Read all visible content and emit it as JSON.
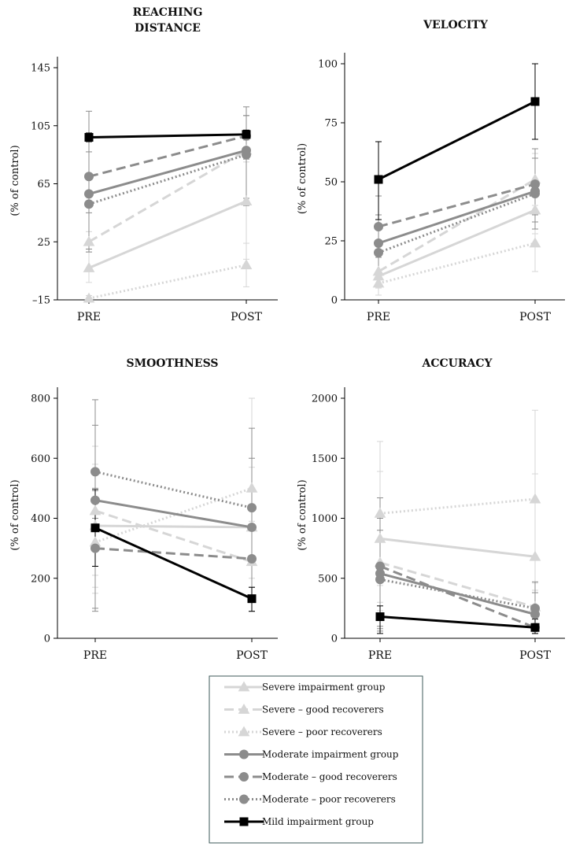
{
  "chart_data": {
    "type": "line",
    "categories": [
      "PRE",
      "POST"
    ],
    "legend": {
      "placement": "bottom-center",
      "entries": [
        {
          "key": "severe",
          "label": "Severe impairment group"
        },
        {
          "key": "severe_good",
          "label": "Severe – good recoverers"
        },
        {
          "key": "severe_poor",
          "label": "Severe – poor recoverers"
        },
        {
          "key": "moderate",
          "label": "Moderate impairment group"
        },
        {
          "key": "moderate_good",
          "label": "Moderate – good recoverers"
        },
        {
          "key": "moderate_poor",
          "label": "Moderate – poor recoverers"
        },
        {
          "key": "mild",
          "label": "Mild impairment group"
        }
      ]
    },
    "styles": {
      "severe": {
        "color": "#d6d6d6",
        "dash": "solid",
        "marker": "triangle"
      },
      "severe_good": {
        "color": "#d6d6d6",
        "dash": "dashed",
        "marker": "triangle"
      },
      "severe_poor": {
        "color": "#d6d6d6",
        "dash": "dotted",
        "marker": "triangle"
      },
      "moderate": {
        "color": "#8c8c8c",
        "dash": "solid",
        "marker": "circle"
      },
      "moderate_good": {
        "color": "#8c8c8c",
        "dash": "dashed",
        "marker": "circle"
      },
      "moderate_poor": {
        "color": "#8c8c8c",
        "dash": "dotted",
        "marker": "circle"
      },
      "mild": {
        "color": "#000000",
        "dash": "solid",
        "marker": "square"
      }
    },
    "panels": [
      {
        "id": "reaching-distance",
        "title": [
          "REACHING",
          "DISTANCE"
        ],
        "ylabel": "(% of control)",
        "ylim": [
          -15,
          145
        ],
        "yticks": [
          "-15",
          "25",
          "65",
          "105",
          "145"
        ],
        "series": [
          {
            "key": "severe",
            "values": [
              7,
              53
            ],
            "err": [
              [
                -3,
                20
              ],
              [
                13,
                95
              ]
            ]
          },
          {
            "key": "severe_good",
            "values": [
              25,
              88
            ],
            "err": [
              [
                18,
                32
              ],
              [
                80,
                95
              ]
            ]
          },
          {
            "key": "severe_poor",
            "values": [
              -14,
              9
            ],
            "err": [
              [
                -16,
                -12
              ],
              [
                -6,
                24
              ]
            ]
          },
          {
            "key": "moderate",
            "values": [
              58,
              88
            ],
            "err": [
              [
                20,
                115
              ],
              [
                55,
                112
              ]
            ]
          },
          {
            "key": "moderate_good",
            "values": [
              70,
              98
            ],
            "err": [
              [
                45,
                94
              ],
              [
                82,
                112
              ]
            ]
          },
          {
            "key": "moderate_poor",
            "values": [
              51,
              85
            ],
            "err": [
              [
                18,
                87
              ],
              [
                50,
                118
              ]
            ]
          },
          {
            "key": "mild",
            "values": [
              97,
              99
            ],
            "err": [
              [
                94,
                100
              ],
              [
                96,
                102
              ]
            ]
          }
        ]
      },
      {
        "id": "velocity",
        "title": [
          "VELOCITY"
        ],
        "ylabel": "(% of control)",
        "ylim": [
          0,
          100
        ],
        "yticks": [
          "0",
          "25",
          "50",
          "75",
          "100"
        ],
        "series": [
          {
            "key": "severe",
            "values": [
              10,
              38
            ],
            "err": [
              [
                2,
                18
              ],
              [
                28,
                48
              ]
            ]
          },
          {
            "key": "severe_good",
            "values": [
              12,
              51
            ],
            "err": [
              [
                5,
                20
              ],
              [
                40,
                62
              ]
            ]
          },
          {
            "key": "severe_poor",
            "values": [
              7,
              24
            ],
            "err": [
              [
                2,
                12
              ],
              [
                12,
                36
              ]
            ]
          },
          {
            "key": "moderate",
            "values": [
              24,
              46
            ],
            "err": [
              [
                12,
                36
              ],
              [
                33,
                60
              ]
            ]
          },
          {
            "key": "moderate_good",
            "values": [
              31,
              49
            ],
            "err": [
              [
                18,
                44
              ],
              [
                36,
                64
              ]
            ]
          },
          {
            "key": "moderate_poor",
            "values": [
              20,
              45
            ],
            "err": [
              [
                9,
                32
              ],
              [
                30,
                60
              ]
            ]
          },
          {
            "key": "mild",
            "values": [
              51,
              84
            ],
            "err": [
              [
                34,
                67
              ],
              [
                68,
                100
              ]
            ]
          }
        ]
      },
      {
        "id": "smoothness",
        "title": [
          "SMOOTHNESS"
        ],
        "ylabel": "(% of control)",
        "ylim": [
          0,
          800
        ],
        "yticks": [
          "0",
          "200",
          "400",
          "600",
          "800"
        ],
        "series": [
          {
            "key": "severe",
            "values": [
              375,
              370
            ],
            "err": [
              [
                170,
                580
              ],
              [
                170,
                570
              ]
            ]
          },
          {
            "key": "severe_good",
            "values": [
              425,
              255
            ],
            "err": [
              [
                210,
                640
              ],
              [
                120,
                390
              ]
            ]
          },
          {
            "key": "severe_poor",
            "values": [
              320,
              500
            ],
            "err": [
              [
                150,
                490
              ],
              [
                200,
                800
              ]
            ]
          },
          {
            "key": "moderate",
            "values": [
              460,
              370
            ],
            "err": [
              [
                90,
                795
              ],
              [
                140,
                600
              ]
            ]
          },
          {
            "key": "moderate_good",
            "values": [
              300,
              265
            ],
            "err": [
              [
                100,
                500
              ],
              [
                90,
                440
              ]
            ]
          },
          {
            "key": "moderate_poor",
            "values": [
              555,
              435
            ],
            "err": [
              [
                400,
                710
              ],
              [
                170,
                700
              ]
            ]
          },
          {
            "key": "mild",
            "values": [
              368,
              132
            ],
            "err": [
              [
                240,
                495
              ],
              [
                90,
                170
              ]
            ]
          }
        ]
      },
      {
        "id": "accuracy",
        "title": [
          "ACCURACY"
        ],
        "ylabel": "(% of control)",
        "ylim": [
          0,
          2000
        ],
        "yticks": [
          "0",
          "500",
          "1000",
          "1500",
          "2000"
        ],
        "series": [
          {
            "key": "severe",
            "values": [
              830,
              680
            ],
            "err": [
              [
                300,
                1390
              ],
              [
                100,
                1370
              ]
            ]
          },
          {
            "key": "severe_good",
            "values": [
              630,
              260
            ],
            "err": [
              [
                230,
                1020
              ],
              [
                80,
                460
              ]
            ]
          },
          {
            "key": "severe_poor",
            "values": [
              1040,
              1160
            ],
            "err": [
              [
                440,
                1640
              ],
              [
                400,
                1900
              ]
            ]
          },
          {
            "key": "moderate",
            "values": [
              540,
              200
            ],
            "err": [
              [
                80,
                1000
              ],
              [
                60,
                380
              ]
            ]
          },
          {
            "key": "moderate_good",
            "values": [
              600,
              90
            ],
            "err": [
              [
                100,
                1170
              ],
              [
                40,
                180
              ]
            ]
          },
          {
            "key": "moderate_poor",
            "values": [
              490,
              250
            ],
            "err": [
              [
                60,
                900
              ],
              [
                100,
                470
              ]
            ]
          },
          {
            "key": "mild",
            "values": [
              180,
              90
            ],
            "err": [
              [
                40,
                270
              ],
              [
                40,
                160
              ]
            ]
          }
        ]
      }
    ]
  }
}
